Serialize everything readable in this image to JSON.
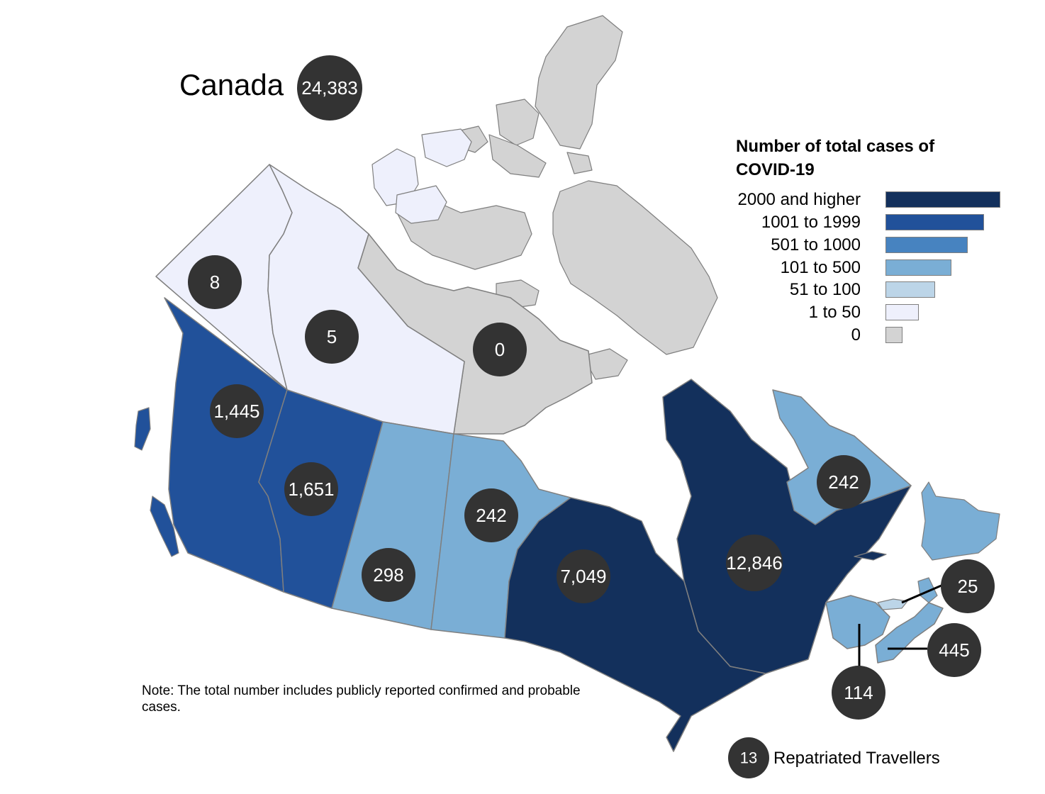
{
  "title": "Canada",
  "total": "24,383",
  "colors": {
    "c0": "#d3d3d3",
    "c1": "#eef0fc",
    "c2": "#bcd5e8",
    "c3": "#7aaed5",
    "c4": "#4783c0",
    "c5": "#21519a",
    "c6": "#13305c",
    "bubble": "#333333"
  },
  "legend": {
    "title": "Number of total cases of COVID-19",
    "items": [
      {
        "label": "2000 and higher",
        "color": "#13305c"
      },
      {
        "label": "1001 to 1999",
        "color": "#21519a"
      },
      {
        "label": "501 to 1000",
        "color": "#4783c0"
      },
      {
        "label": "101 to 500",
        "color": "#7aaed5"
      },
      {
        "label": "51 to 100",
        "color": "#bcd5e8"
      },
      {
        "label": "1 to 50",
        "color": "#eef0fc"
      },
      {
        "label": "0",
        "color": "#d3d3d3"
      }
    ]
  },
  "regions": {
    "yukon": "8",
    "nwt": "5",
    "nunavut": "0",
    "bc": "1,445",
    "alberta": "1,651",
    "saskatchewan": "298",
    "manitoba": "242",
    "ontario": "7,049",
    "quebec": "12,846",
    "newfoundland_labrador": "242",
    "pei": "25",
    "nova_scotia": "445",
    "new_brunswick": "114"
  },
  "repatriated": {
    "count": "13",
    "label": "Repatriated Travellers"
  },
  "note": "Note: The total number includes publicly reported confirmed and probable cases."
}
